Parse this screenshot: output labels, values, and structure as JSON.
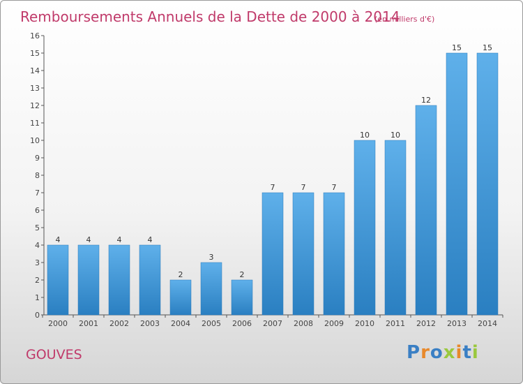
{
  "chart_data": {
    "type": "bar",
    "title": "Remboursements Annuels de la Dette de 2000 à 2014",
    "unit_note": "(en milliers d'€)",
    "categories": [
      "2000",
      "2001",
      "2002",
      "2003",
      "2004",
      "2005",
      "2006",
      "2007",
      "2008",
      "2009",
      "2010",
      "2011",
      "2012",
      "2013",
      "2014"
    ],
    "values": [
      4,
      4,
      4,
      4,
      2,
      3,
      2,
      7,
      7,
      7,
      10,
      10,
      12,
      15,
      15
    ],
    "ylim": [
      0,
      16
    ],
    "yticks": [
      0,
      1,
      2,
      3,
      4,
      5,
      6,
      7,
      8,
      9,
      10,
      11,
      12,
      13,
      14,
      15,
      16
    ],
    "grid": false,
    "colors": {
      "bar_light": "#5fb0ea",
      "bar_dark": "#2a7fc1",
      "title": "#c03a6a"
    }
  },
  "footer": {
    "place": "GOUVES",
    "logo_text": "Proxiti",
    "logo_colors": [
      "#3a7fc4",
      "#e8892b",
      "#3a7fc4",
      "#9ac83e",
      "#e8892b",
      "#3a7fc4",
      "#9ac83e"
    ]
  }
}
